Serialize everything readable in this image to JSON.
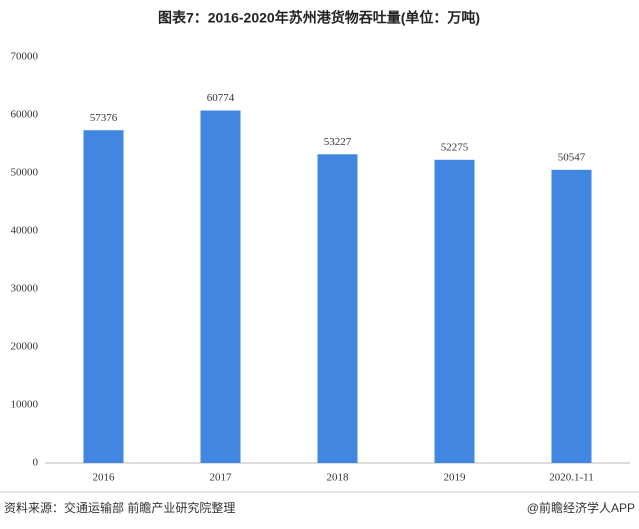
{
  "chart_data": {
    "type": "bar",
    "title": "图表7：2016-2020年苏州港货物吞吐量(单位：万吨)",
    "categories": [
      "2016",
      "2017",
      "2018",
      "2019",
      "2020.1-11"
    ],
    "values": [
      57376,
      60774,
      53227,
      52275,
      50547
    ],
    "color": "#4186e0",
    "ylim": [
      0,
      70000
    ],
    "yticks": [
      0,
      10000,
      20000,
      30000,
      40000,
      50000,
      60000,
      70000
    ],
    "source": "资料来源：交通运输部 前瞻产业研究院整理",
    "brand": "@前瞻经济学人APP"
  }
}
